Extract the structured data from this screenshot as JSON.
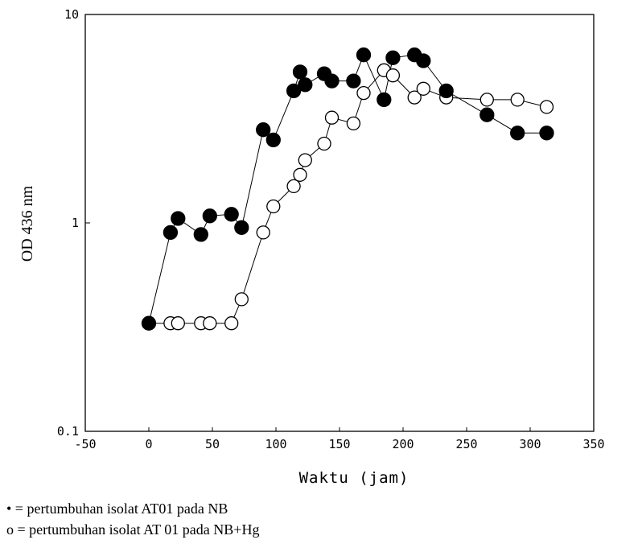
{
  "chart_data": {
    "type": "scatter",
    "xlabel": "Waktu (jam)",
    "ylabel": "OD 436 nm",
    "xlim": [
      -50,
      350
    ],
    "ylim": [
      0.1,
      10
    ],
    "y_scale": "log",
    "x_ticks": [
      -50,
      0,
      50,
      100,
      150,
      200,
      250,
      300,
      350
    ],
    "y_ticks": [
      {
        "value": 0.1,
        "label": "0.1"
      },
      {
        "value": 1,
        "label": "1"
      },
      {
        "value": 10,
        "label": "10"
      }
    ],
    "grid": false,
    "series": [
      {
        "marker": "filled-circle",
        "x": [
          0,
          17,
          23,
          41,
          48,
          65,
          73,
          90,
          98,
          114,
          119,
          123,
          138,
          144,
          161,
          169,
          185,
          192,
          209,
          216,
          234,
          266,
          290,
          313
        ],
        "y": [
          0.33,
          0.9,
          1.05,
          0.88,
          1.08,
          1.1,
          0.95,
          2.8,
          2.5,
          4.3,
          5.3,
          4.6,
          5.2,
          4.8,
          4.8,
          6.4,
          3.9,
          6.2,
          6.4,
          6.0,
          4.3,
          3.3,
          2.7,
          2.7
        ]
      },
      {
        "marker": "open-circle",
        "x": [
          0,
          17,
          23,
          41,
          48,
          65,
          73,
          90,
          98,
          114,
          119,
          123,
          138,
          144,
          161,
          169,
          185,
          192,
          209,
          216,
          234,
          266,
          290,
          313
        ],
        "y": [
          0.33,
          0.33,
          0.33,
          0.33,
          0.33,
          0.33,
          0.43,
          0.9,
          1.2,
          1.5,
          1.7,
          2.0,
          2.4,
          3.2,
          3.0,
          4.2,
          5.4,
          5.1,
          4.0,
          4.4,
          4.0,
          3.9,
          3.9,
          3.6
        ]
      }
    ]
  },
  "legend": {
    "line1": "• = pertumbuhan isolat AT01 pada NB",
    "line2": "o = pertumbuhan isolat AT 01 pada NB+Hg"
  }
}
